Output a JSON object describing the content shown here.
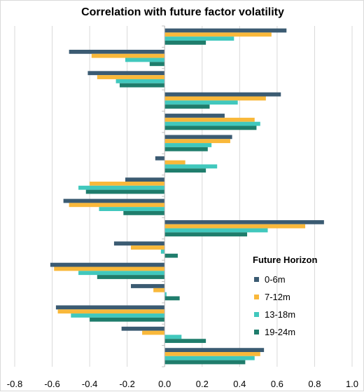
{
  "chart_data": {
    "type": "bar",
    "orientation": "horizontal",
    "title": "Correlation with future factor volatility",
    "xlim": [
      -0.8,
      1.0
    ],
    "xticks": [
      "-0.8",
      "-0.6",
      "-0.4",
      "-0.2",
      "0.0",
      "0.2",
      "0.4",
      "0.6",
      "0.8",
      "1.0"
    ],
    "grid": "vertical",
    "legend_title": "Future Horizon",
    "legend_position": "right",
    "series": [
      {
        "name": "0-6m",
        "color": "#3b5b72",
        "values": [
          0.65,
          -0.51,
          -0.41,
          0.62,
          0.32,
          0.36,
          -0.05,
          -0.21,
          -0.54,
          0.85,
          -0.27,
          -0.61,
          -0.18,
          -0.58,
          -0.23,
          0.53
        ]
      },
      {
        "name": "7-12m",
        "color": "#f9b83a",
        "values": [
          0.57,
          -0.39,
          -0.36,
          0.54,
          0.48,
          0.35,
          0.11,
          -0.4,
          -0.51,
          0.75,
          -0.18,
          -0.59,
          -0.06,
          -0.57,
          -0.12,
          0.51
        ]
      },
      {
        "name": "13-18m",
        "color": "#41c8bd",
        "values": [
          0.37,
          -0.21,
          -0.26,
          0.39,
          0.51,
          0.25,
          0.28,
          -0.46,
          -0.35,
          0.55,
          -0.02,
          -0.46,
          0.01,
          -0.5,
          0.09,
          0.48
        ]
      },
      {
        "name": "19-24m",
        "color": "#1f7d6c",
        "values": [
          0.22,
          -0.08,
          -0.24,
          0.24,
          0.49,
          0.23,
          0.22,
          -0.42,
          -0.22,
          0.44,
          0.07,
          -0.36,
          0.08,
          -0.4,
          0.22,
          0.43
        ]
      }
    ]
  }
}
